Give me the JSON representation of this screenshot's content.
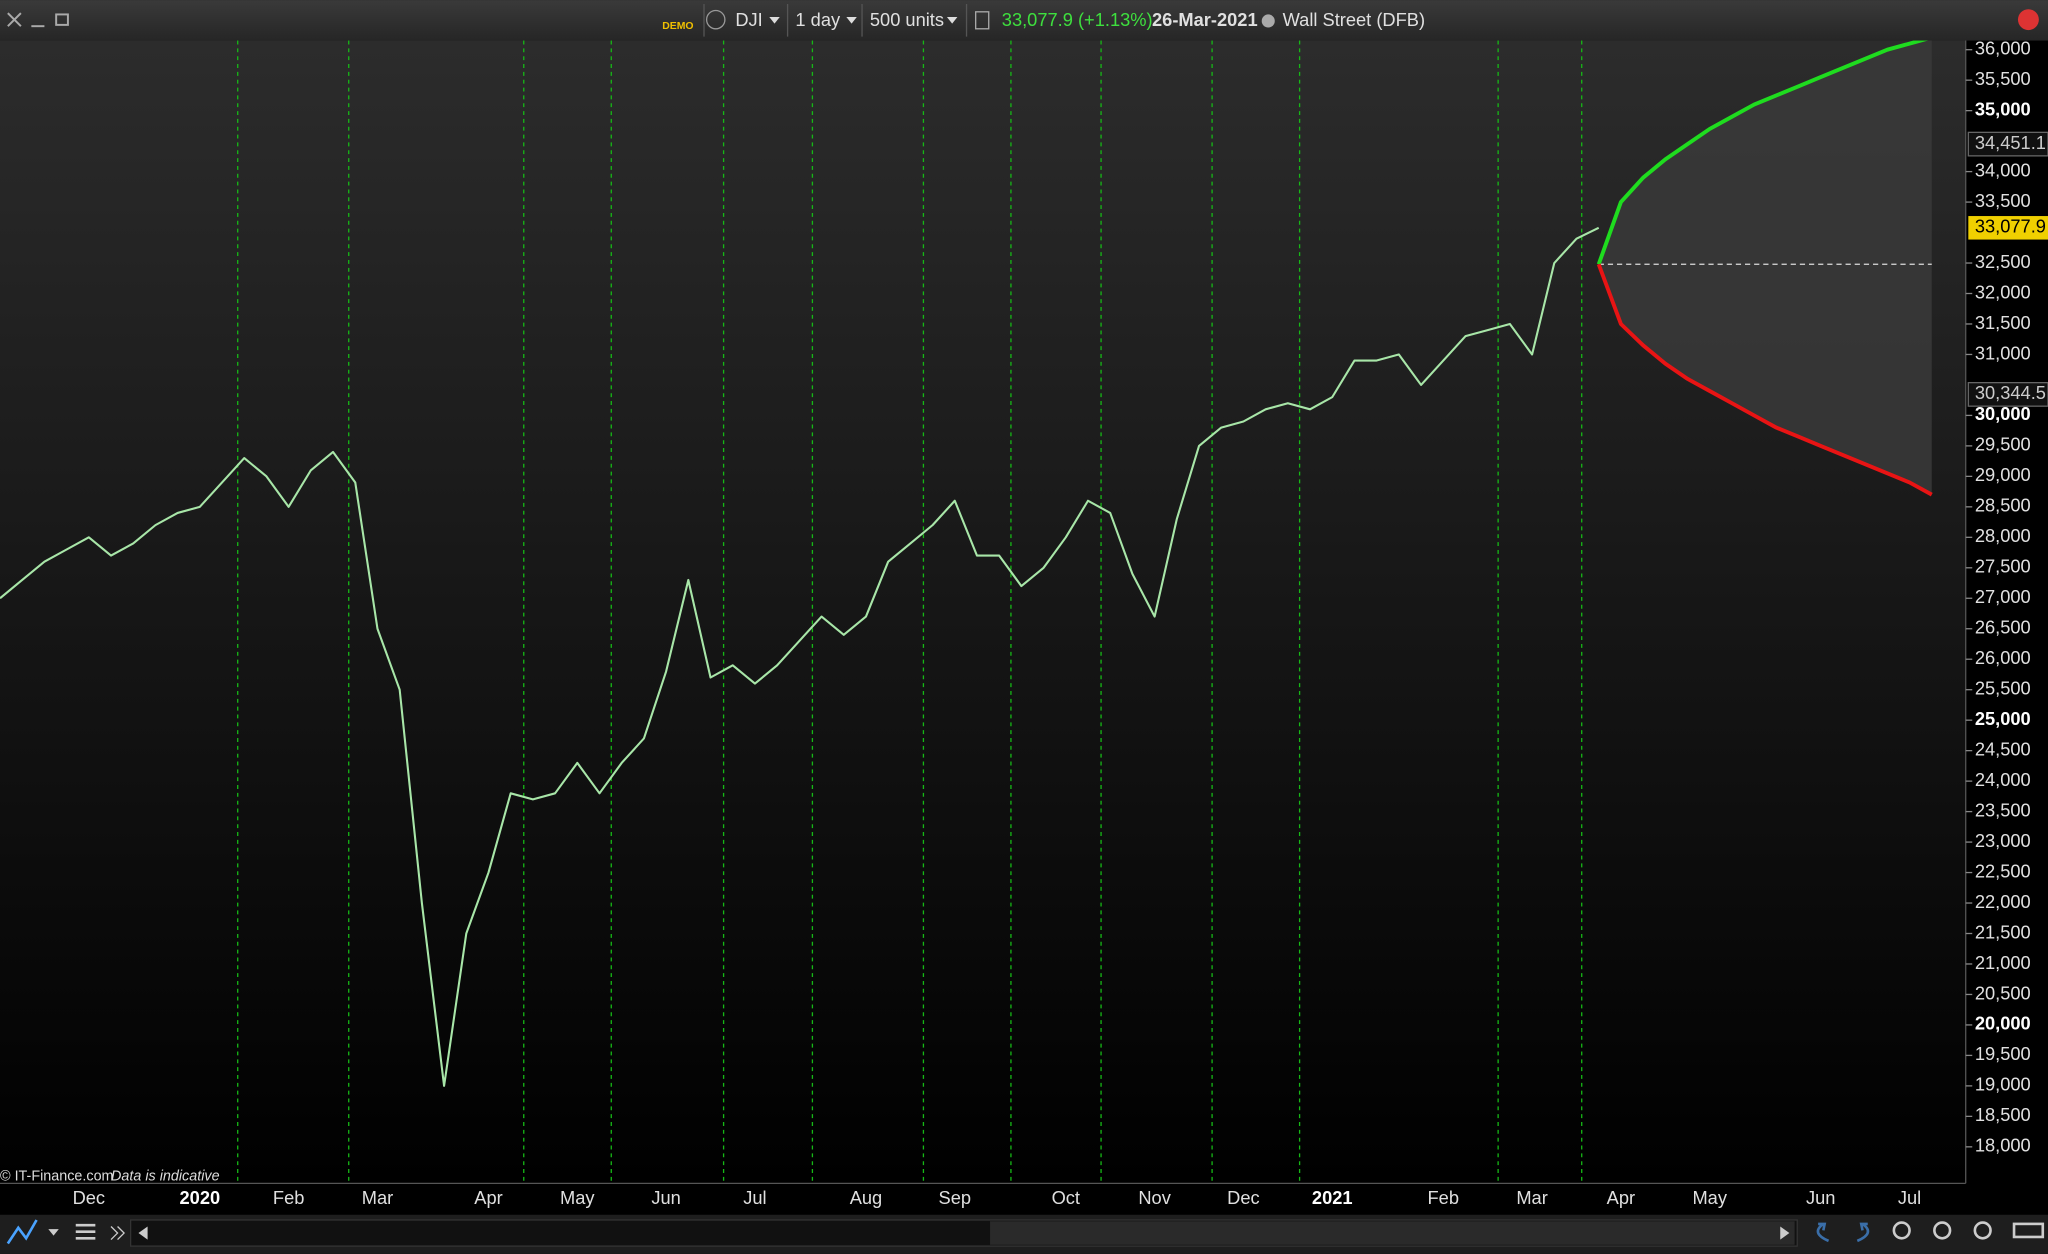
{
  "toolbar": {
    "demo": "DEMO",
    "symbol": "DJI",
    "interval": "1 day",
    "size": "500 units",
    "price": "33,077.9 (+1.13%)",
    "date": "26-Mar-2021",
    "market": "Wall Street (DFB)"
  },
  "footer": {
    "copyright": "© IT-Finance.com",
    "note": "Data is indicative"
  },
  "chart_data": {
    "type": "line",
    "categories": [
      null,
      null,
      null,
      null,
      "Dec",
      null,
      null,
      null,
      null,
      "2020",
      null,
      null,
      null,
      "Feb",
      null,
      null,
      null,
      "Mar",
      null,
      null,
      null,
      null,
      "Apr",
      null,
      null,
      null,
      "May",
      null,
      null,
      null,
      "Jun",
      null,
      null,
      null,
      "Jul",
      null,
      null,
      null,
      null,
      "Aug",
      null,
      null,
      null,
      "Sep",
      null,
      null,
      null,
      null,
      "Oct",
      null,
      null,
      null,
      "Nov",
      null,
      null,
      null,
      "Dec",
      null,
      null,
      null,
      "2021",
      null,
      null,
      null,
      null,
      "Feb",
      null,
      null,
      null,
      "Mar",
      null,
      null,
      null,
      "Apr",
      null,
      null,
      null,
      "May",
      null,
      null,
      null,
      null,
      "Jun",
      null,
      null,
      null,
      "Jul",
      null
    ],
    "series": [
      {
        "color": "#a8e6a8",
        "values": [
          27000,
          27300,
          27600,
          27800,
          28000,
          27700,
          27900,
          28200,
          28400,
          28500,
          28900,
          29300,
          29000,
          28500,
          29100,
          29400,
          28900,
          26500,
          25500,
          22000,
          19000,
          21500,
          22500,
          23800,
          23700,
          23800,
          24300,
          23800,
          24300,
          24700,
          25800,
          27300,
          25700,
          25900,
          25600,
          25900,
          26300,
          26700,
          26400,
          26700,
          27600,
          27900,
          28200,
          28600,
          27700,
          27700,
          27200,
          27500,
          28000,
          28600,
          28400,
          27400,
          26700,
          28300,
          29500,
          29800,
          29900,
          30100,
          30200,
          30100,
          30300,
          30900,
          30900,
          31000,
          30500,
          30900,
          31300,
          31400,
          31500,
          31000,
          32500,
          32900,
          33077.9,
          null,
          null,
          null,
          null,
          null,
          null,
          null,
          null,
          null,
          null,
          null,
          null,
          null,
          null,
          null
        ]
      },
      {
        "color": "#1fdc1f",
        "values": [
          null,
          null,
          null,
          null,
          null,
          null,
          null,
          null,
          null,
          null,
          null,
          null,
          null,
          null,
          null,
          null,
          null,
          null,
          null,
          null,
          null,
          null,
          null,
          null,
          null,
          null,
          null,
          null,
          null,
          null,
          null,
          null,
          null,
          null,
          null,
          null,
          null,
          null,
          null,
          null,
          null,
          null,
          null,
          null,
          null,
          null,
          null,
          null,
          null,
          null,
          null,
          null,
          null,
          null,
          null,
          null,
          null,
          null,
          null,
          null,
          null,
          null,
          null,
          null,
          null,
          null,
          null,
          null,
          null,
          null,
          null,
          null,
          32480,
          33500,
          33900,
          34200,
          34450,
          34700,
          34900,
          35100,
          35250,
          35400,
          35550,
          35700,
          35850,
          36000,
          36100,
          36200
        ]
      },
      {
        "color": "#e81414",
        "values": [
          null,
          null,
          null,
          null,
          null,
          null,
          null,
          null,
          null,
          null,
          null,
          null,
          null,
          null,
          null,
          null,
          null,
          null,
          null,
          null,
          null,
          null,
          null,
          null,
          null,
          null,
          null,
          null,
          null,
          null,
          null,
          null,
          null,
          null,
          null,
          null,
          null,
          null,
          null,
          null,
          null,
          null,
          null,
          null,
          null,
          null,
          null,
          null,
          null,
          null,
          null,
          null,
          null,
          null,
          null,
          null,
          null,
          null,
          null,
          null,
          null,
          null,
          null,
          null,
          null,
          null,
          null,
          null,
          null,
          null,
          null,
          null,
          32480,
          31500,
          31150,
          30850,
          30600,
          30400,
          30200,
          30000,
          29800,
          29650,
          29500,
          29350,
          29200,
          29050,
          28900,
          28700
        ]
      }
    ],
    "ylim": [
      17400,
      36150
    ],
    "yticks": [
      {
        "value": 18000,
        "label": "18,000"
      },
      {
        "value": 18500,
        "label": "18,500"
      },
      {
        "value": 19000,
        "label": "19,000"
      },
      {
        "value": 19500,
        "label": "19,500"
      },
      {
        "value": 20000,
        "label": "20,000"
      },
      {
        "value": 20500,
        "label": "20,500"
      },
      {
        "value": 21000,
        "label": "21,000"
      },
      {
        "value": 21500,
        "label": "21,500"
      },
      {
        "value": 22000,
        "label": "22,000"
      },
      {
        "value": 22500,
        "label": "22,500"
      },
      {
        "value": 23000,
        "label": "23,000"
      },
      {
        "value": 23500,
        "label": "23,500"
      },
      {
        "value": 24000,
        "label": "24,000"
      },
      {
        "value": 24500,
        "label": "24,500"
      },
      {
        "value": 25000,
        "label": "25,000"
      },
      {
        "value": 25500,
        "label": "25,500"
      },
      {
        "value": 26000,
        "label": "26,000"
      },
      {
        "value": 26500,
        "label": "26,500"
      },
      {
        "value": 27000,
        "label": "27,000"
      },
      {
        "value": 27500,
        "label": "27,500"
      },
      {
        "value": 28000,
        "label": "28,000"
      },
      {
        "value": 28500,
        "label": "28,500"
      },
      {
        "value": 29000,
        "label": "29,000"
      },
      {
        "value": 29500,
        "label": "29,500"
      },
      {
        "value": 30000,
        "label": "30,000"
      },
      {
        "value": 31000,
        "label": "31,000"
      },
      {
        "value": 31500,
        "label": "31,500"
      },
      {
        "value": 32000,
        "label": "32,000"
      },
      {
        "value": 32500,
        "label": "32,500"
      },
      {
        "value": 33500,
        "label": "33,500"
      },
      {
        "value": 34000,
        "label": "34,000"
      },
      {
        "value": 35000,
        "label": "35,000"
      },
      {
        "value": 35500,
        "label": "35,500"
      },
      {
        "value": 36000,
        "label": "36,000"
      }
    ],
    "markers": [
      {
        "value": 34451.1,
        "label": "34,451.1"
      },
      {
        "value": 33077.9,
        "label": "33,077.9"
      },
      {
        "value": 30344.5,
        "label": "30,344.5"
      }
    ]
  }
}
